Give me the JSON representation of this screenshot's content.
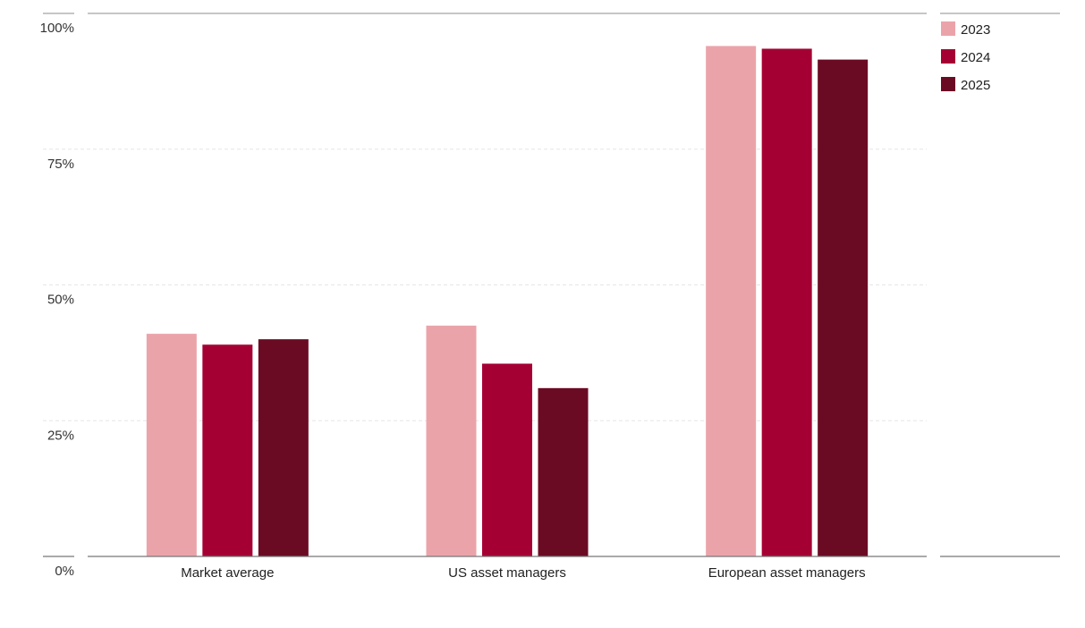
{
  "chart_data": {
    "type": "bar",
    "categories": [
      "Market average",
      "US asset managers",
      "European asset managers"
    ],
    "series": [
      {
        "name": "2023",
        "color": "#eba3aa",
        "values": [
          41,
          42.5,
          94
        ]
      },
      {
        "name": "2024",
        "color": "#a50034",
        "values": [
          39,
          35.5,
          93.5
        ]
      },
      {
        "name": "2025",
        "color": "#6b0b23",
        "values": [
          40,
          31,
          91.5
        ]
      }
    ],
    "yticks": [
      "0%",
      "25%",
      "50%",
      "75%",
      "100%"
    ],
    "ylim": [
      0,
      100
    ],
    "grid": "horizontal dashed",
    "legend_position": "top-right",
    "title": "",
    "xlabel": "",
    "ylabel": ""
  }
}
